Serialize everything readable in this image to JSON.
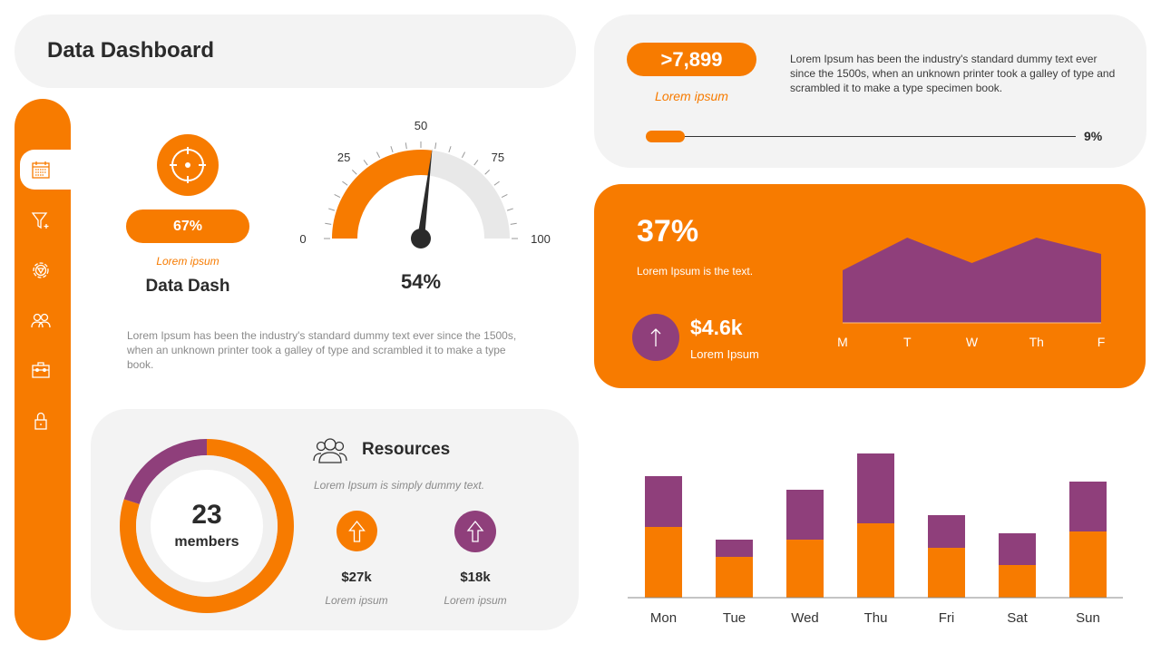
{
  "header": {
    "title": "Data Dashboard"
  },
  "sidebar": {
    "items": [
      {
        "icon": "calendar-icon",
        "active": true
      },
      {
        "icon": "funnel-plus-icon"
      },
      {
        "icon": "gear-icon"
      },
      {
        "icon": "users-icon"
      },
      {
        "icon": "briefcase-icon"
      },
      {
        "icon": "lock-icon"
      }
    ]
  },
  "kpi": {
    "value": "67%",
    "label": "Lorem ipsum",
    "title": "Data Dash",
    "icon": "target-icon"
  },
  "gauge": {
    "value": 54,
    "min": 0,
    "max": 100,
    "ticks": [
      "0",
      "25",
      "50",
      "75",
      "100"
    ],
    "value_label": "54%"
  },
  "description": "Lorem Ipsum has been the industry's standard dummy text ever since the 1500s, when an unknown printer took a galley of type and scrambled it to make a type book.",
  "top_right": {
    "value": ">7,899",
    "label": "Lorem ipsum",
    "text": "Lorem Ipsum has been the industry's standard dummy text ever since the 1500s, when an unknown printer took a galley of type and scrambled it to make a type specimen book.",
    "progress": 9,
    "progress_label": "9%"
  },
  "orange_card": {
    "percent": "37%",
    "subtitle": "Lorem Ipsum is the text.",
    "amount": "$4.6k",
    "amount_label": "Lorem Ipsum"
  },
  "resources": {
    "members": "23",
    "members_label": "members",
    "title": "Resources",
    "subtitle": "Lorem Ipsum is simply dummy text.",
    "stat1": {
      "value": "$27k",
      "label": "Lorem ipsum"
    },
    "stat2": {
      "value": "$18k",
      "label": "Lorem ipsum"
    }
  },
  "colors": {
    "orange": "#f77b00",
    "purple": "#8f3f7b",
    "card": "#f3f3f3"
  },
  "chart_data": [
    {
      "type": "area",
      "categories": [
        "M",
        "T",
        "W",
        "Th",
        "F"
      ],
      "values": [
        58,
        94,
        66,
        94,
        76
      ],
      "color": "#8f3f7b"
    },
    {
      "type": "pie",
      "variant": "donut",
      "values": [
        80,
        20
      ],
      "colors": [
        "#f77b00",
        "#8f3f7b"
      ]
    },
    {
      "type": "bar",
      "stacked": true,
      "categories": [
        "Mon",
        "Tue",
        "Wed",
        "Thu",
        "Fri",
        "Sat",
        "Sun"
      ],
      "series": [
        {
          "values": [
            78,
            45,
            64,
            82,
            55,
            36,
            73
          ],
          "color": "#f77b00"
        },
        {
          "values": [
            56,
            19,
            55,
            77,
            36,
            35,
            55
          ],
          "color": "#8f3f7b"
        }
      ],
      "grid": false
    }
  ]
}
